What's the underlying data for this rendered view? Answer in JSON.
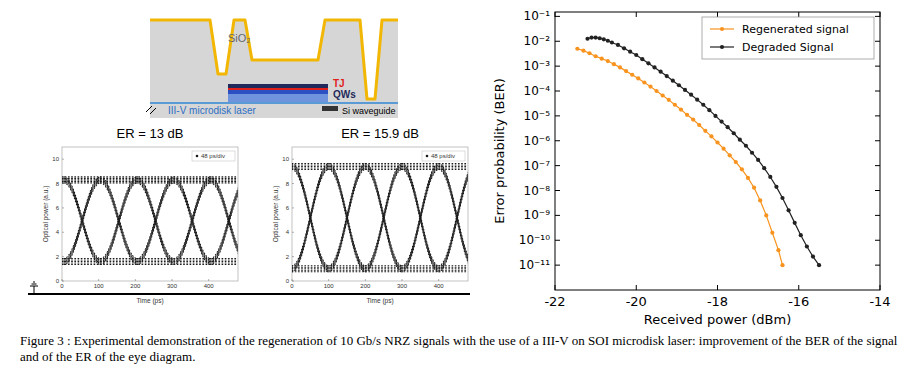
{
  "schematic": {
    "oxide": "SiO₂",
    "tunnel_junction": "TJ",
    "quantum_wells": "QWs",
    "laser": "III-V microdisk laser",
    "waveguide": "Si waveguide"
  },
  "eye_diagrams": [
    {
      "title": "ER = 13 dB",
      "scale_label": "48 ps/div",
      "x_label": "Time (ps)",
      "y_label": "Optical power (a.u.)",
      "xlim": [
        0,
        480
      ],
      "xticks": [
        0,
        100,
        200,
        300,
        400
      ],
      "ylim": [
        0,
        11
      ],
      "yticks": [
        0,
        2,
        4,
        6,
        8,
        10
      ],
      "one_level": 8.3,
      "zero_level": 1.6,
      "crossings": [
        55,
        155,
        255,
        355,
        455
      ]
    },
    {
      "title": "ER = 15.9 dB",
      "scale_label": "48 ps/div",
      "x_label": "Time (ps)",
      "y_label": "Optical power (a.u.)",
      "xlim": [
        0,
        480
      ],
      "xticks": [
        0,
        100,
        200,
        300,
        400
      ],
      "ylim": [
        0,
        11
      ],
      "yticks": [
        0,
        2,
        4,
        6,
        8,
        10
      ],
      "one_level": 9.4,
      "zero_level": 1.0,
      "crossings": [
        50,
        150,
        250,
        350,
        450
      ]
    }
  ],
  "chart_data": {
    "type": "line",
    "x_label": "Received power (dBm)",
    "y_label": "Error probability (BER)",
    "log": "y",
    "grid": false,
    "legend": "upper right",
    "xlim": [
      -22,
      -14
    ],
    "xticks": [
      -22,
      -20,
      -18,
      -16,
      -14
    ],
    "ylim": [
      1e-12,
      0.15
    ],
    "yticks": [
      {
        "value": 0.1,
        "label": "10⁻¹"
      },
      {
        "value": 0.01,
        "label": "10⁻²"
      },
      {
        "value": 0.001,
        "label": "10⁻³"
      },
      {
        "value": 0.0001,
        "label": "10⁻⁴"
      },
      {
        "value": 1e-05,
        "label": "10⁻⁵"
      },
      {
        "value": 1e-06,
        "label": "10⁻⁶"
      },
      {
        "value": 1e-07,
        "label": "10⁻⁷"
      },
      {
        "value": 1e-08,
        "label": "10⁻⁸"
      },
      {
        "value": 1e-09,
        "label": "10⁻⁹"
      },
      {
        "value": 1e-10,
        "label": "10⁻¹⁰"
      },
      {
        "value": 1e-11,
        "label": "10⁻¹¹"
      }
    ],
    "series": [
      {
        "name": "Regenerated signal",
        "color": "#f7931e",
        "marker": "circle",
        "line_style": "solid",
        "x": [
          -21.45,
          -21.3,
          -21.15,
          -21.0,
          -20.85,
          -20.7,
          -20.55,
          -20.4,
          -20.25,
          -20.1,
          -19.95,
          -19.8,
          -19.65,
          -19.5,
          -19.35,
          -19.2,
          -19.05,
          -18.9,
          -18.75,
          -18.6,
          -18.45,
          -18.3,
          -18.15,
          -18.0,
          -17.85,
          -17.7,
          -17.55,
          -17.4,
          -17.25,
          -17.1,
          -16.95,
          -16.8,
          -16.65,
          -16.5,
          -16.4
        ],
        "values": [
          0.005,
          0.0042,
          0.0033,
          0.0025,
          0.002,
          0.0016,
          0.0012,
          0.00089,
          0.00063,
          0.00045,
          0.00032,
          0.00022,
          0.00015,
          0.0001,
          6.6e-05,
          4.4e-05,
          2.8e-05,
          1.8e-05,
          1.1e-05,
          7.1e-06,
          4.3e-06,
          2.5e-06,
          1.5e-06,
          8.5e-07,
          4.8e-07,
          2.6e-07,
          1.4e-07,
          7.1e-08,
          3.2e-08,
          1.3e-08,
          4e-09,
          1e-09,
          2e-10,
          4e-11,
          1e-11
        ]
      },
      {
        "name": "Degraded Signal",
        "color": "#222222",
        "marker": "circle",
        "line_style": "solid",
        "x": [
          -21.2,
          -21.1,
          -21.0,
          -20.9,
          -20.8,
          -20.7,
          -20.6,
          -20.45,
          -20.3,
          -20.15,
          -20.0,
          -19.85,
          -19.7,
          -19.55,
          -19.4,
          -19.25,
          -19.1,
          -18.95,
          -18.8,
          -18.65,
          -18.5,
          -18.35,
          -18.2,
          -18.05,
          -17.9,
          -17.75,
          -17.6,
          -17.45,
          -17.3,
          -17.15,
          -17.0,
          -16.85,
          -16.7,
          -16.55,
          -16.4,
          -16.25,
          -16.1,
          -15.95,
          -15.8,
          -15.65,
          -15.5
        ],
        "values": [
          0.0126,
          0.0141,
          0.0141,
          0.0132,
          0.012,
          0.0105,
          0.0089,
          0.0071,
          0.0052,
          0.0038,
          0.0028,
          0.0019,
          0.0013,
          0.00089,
          0.0006,
          0.0004,
          0.00026,
          0.00017,
          0.00011,
          7.1e-05,
          4.5e-05,
          2.8e-05,
          1.7e-05,
          1e-05,
          5.9e-06,
          3.5e-06,
          2e-06,
          1.1e-06,
          6.3e-07,
          3.3e-07,
          1.7e-07,
          7.9e-08,
          3.5e-08,
          1.4e-08,
          5e-09,
          1.6e-09,
          5e-10,
          1.6e-10,
          5.6e-11,
          2.2e-11,
          1e-11
        ]
      }
    ]
  },
  "caption": "Figure 3 : Experimental demonstration of the regeneration of 10 Gb/s NRZ signals with the use of a III-V on SOI microdisk laser: improvement of the BER of the signal and of the ER of the eye diagram."
}
